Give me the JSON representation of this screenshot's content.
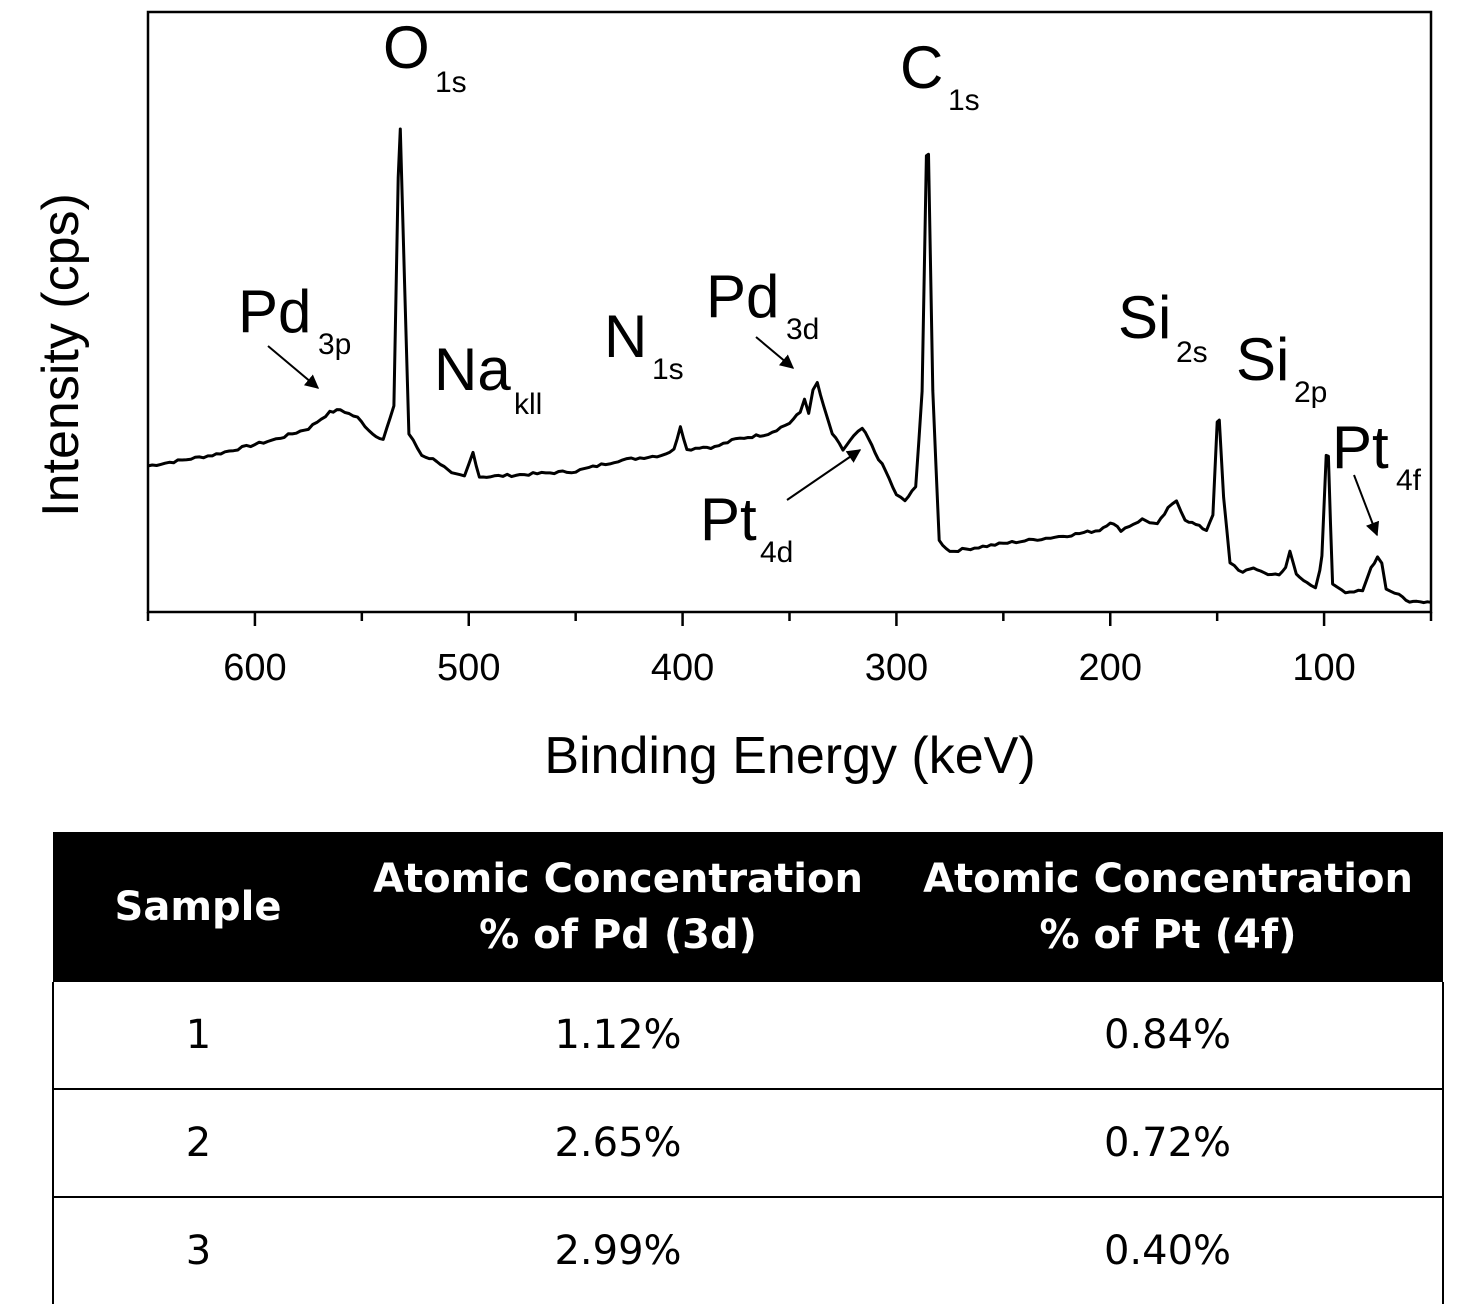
{
  "chart_data": {
    "type": "line",
    "xlabel": "Binding Energy (keV)",
    "ylabel": "Intensity (cps)",
    "xlim": [
      650,
      50
    ],
    "ylim": [
      0,
      100
    ],
    "x_axis_reversed": true,
    "y_ticks_shown": false,
    "x_ticks": [
      600,
      500,
      400,
      300,
      200,
      100
    ],
    "grid": false,
    "series": [
      {
        "values": [
          [
            650,
            26
          ],
          [
            620,
            28
          ],
          [
            590,
            31
          ],
          [
            575,
            33
          ],
          [
            565,
            36
          ],
          [
            560,
            36.5
          ],
          [
            552,
            35
          ],
          [
            545,
            32
          ],
          [
            540,
            31
          ],
          [
            535,
            37
          ],
          [
            533,
            80
          ],
          [
            532,
            89
          ],
          [
            530,
            60
          ],
          [
            528,
            32
          ],
          [
            522,
            28
          ],
          [
            515,
            27
          ],
          [
            508,
            24.5
          ],
          [
            502,
            24
          ],
          [
            498,
            28.5
          ],
          [
            495,
            24
          ],
          [
            490,
            24
          ],
          [
            470,
            24.5
          ],
          [
            450,
            25
          ],
          [
            430,
            27
          ],
          [
            410,
            28
          ],
          [
            404,
            29
          ],
          [
            401,
            33.5
          ],
          [
            398,
            29
          ],
          [
            392,
            29.5
          ],
          [
            385,
            29.5
          ],
          [
            375,
            31
          ],
          [
            360,
            32
          ],
          [
            350,
            34
          ],
          [
            345,
            36
          ],
          [
            343,
            38.5
          ],
          [
            341,
            36
          ],
          [
            339,
            40
          ],
          [
            337,
            41.5
          ],
          [
            334,
            37
          ],
          [
            330,
            32
          ],
          [
            325,
            29
          ],
          [
            320,
            31.5
          ],
          [
            316,
            33
          ],
          [
            313,
            31
          ],
          [
            310,
            28.5
          ],
          [
            305,
            25
          ],
          [
            300,
            20.5
          ],
          [
            296,
            19.5
          ],
          [
            291,
            22
          ],
          [
            288,
            40
          ],
          [
            286,
            84
          ],
          [
            285,
            84
          ],
          [
            283,
            40
          ],
          [
            280,
            12
          ],
          [
            275,
            10
          ],
          [
            250,
            11.5
          ],
          [
            220,
            13
          ],
          [
            205,
            14
          ],
          [
            200,
            15.5
          ],
          [
            195,
            14
          ],
          [
            185,
            16
          ],
          [
            178,
            15
          ],
          [
            173,
            18
          ],
          [
            169,
            19.5
          ],
          [
            165,
            16
          ],
          [
            160,
            15
          ],
          [
            155,
            14
          ],
          [
            152,
            17
          ],
          [
            150,
            34
          ],
          [
            149,
            34.5
          ],
          [
            147,
            20
          ],
          [
            144,
            8
          ],
          [
            138,
            6
          ],
          [
            133,
            7
          ],
          [
            128,
            6
          ],
          [
            121,
            5.5
          ],
          [
            118,
            7
          ],
          [
            116,
            10
          ],
          [
            113,
            6
          ],
          [
            108,
            4
          ],
          [
            104,
            3
          ],
          [
            102,
            6.5
          ],
          [
            101,
            9
          ],
          [
            99,
            28
          ],
          [
            98,
            28
          ],
          [
            97,
            15
          ],
          [
            96,
            4
          ],
          [
            90,
            2.5
          ],
          [
            82,
            2.5
          ],
          [
            78,
            7
          ],
          [
            75,
            9
          ],
          [
            73,
            8
          ],
          [
            71,
            3
          ],
          [
            65,
            2
          ],
          [
            60,
            0.5
          ],
          [
            55,
            0.8
          ],
          [
            50,
            0.5
          ]
        ]
      }
    ],
    "annotations": [
      {
        "main": "O",
        "sub": "1s"
      },
      {
        "main": "C",
        "sub": "1s"
      },
      {
        "main": "Pd",
        "sub": "3p"
      },
      {
        "main": "Na",
        "sub": "kll"
      },
      {
        "main": "N",
        "sub": "1s"
      },
      {
        "main": "Pd",
        "sub": "3d"
      },
      {
        "main": "Si",
        "sub": "2s"
      },
      {
        "main": "Si",
        "sub": "2p"
      },
      {
        "main": "Pt",
        "sub": "4f"
      },
      {
        "main": "Pt",
        "sub": "4d"
      }
    ]
  },
  "table": {
    "headers": [
      [
        "Sample"
      ],
      [
        "Atomic Concentration",
        "% of Pd (3d)"
      ],
      [
        "Atomic Concentration",
        "% of Pt (4f)"
      ]
    ],
    "rows": [
      [
        "1",
        "1.12%",
        "0.84%"
      ],
      [
        "2",
        "2.65%",
        "0.72%"
      ],
      [
        "3",
        "2.99%",
        "0.40%"
      ]
    ]
  }
}
